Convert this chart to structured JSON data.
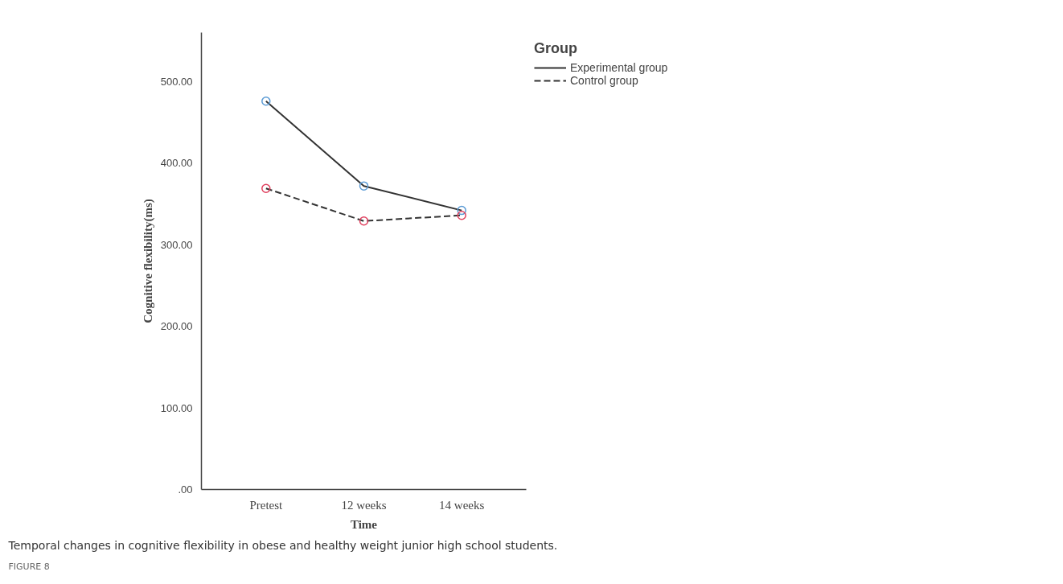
{
  "chart_data": {
    "type": "line",
    "xlabel": "Time",
    "ylabel": "Cognitive flexibility(ms)",
    "legend_title": "Group",
    "categories": [
      "Pretest",
      "12 weeks",
      "14 weeks"
    ],
    "series": [
      {
        "name": "Experimental group",
        "color": "#333333",
        "colors": [
          "#5b9bd5",
          "#5b9bd5",
          "#5b9bd5"
        ],
        "line_style": "solid",
        "values": [
          476,
          372,
          342
        ]
      },
      {
        "name": "Control group",
        "color": "#333333",
        "colors": [
          "#e0405e",
          "#e0405e",
          "#e0405e"
        ],
        "line_style": "dashed",
        "values": [
          369,
          329,
          336
        ]
      }
    ],
    "ylim": [
      0,
      560
    ],
    "yticks": [
      {
        "value": 0,
        "label": ".00"
      },
      {
        "value": 100,
        "label": "100.00"
      },
      {
        "value": 200,
        "label": "200.00"
      },
      {
        "value": 300,
        "label": "300.00"
      },
      {
        "value": 400,
        "label": "400.00"
      },
      {
        "value": 500,
        "label": "500.00"
      }
    ],
    "grid": false,
    "legend": "top right",
    "marker": "circle",
    "annotations": [
      "FIGURE 8",
      "Temporal changes in cognitive flexibility in obese and healthy weight junior high school students."
    ]
  }
}
